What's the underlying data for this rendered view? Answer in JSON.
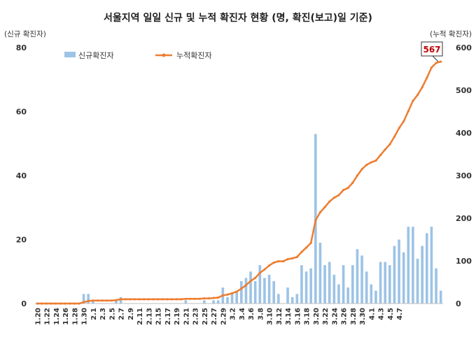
{
  "chart_data": {
    "type": "bar+line",
    "title": "서울지역 일일 신규 및 누적 확진자 현황 (명, 확진(보고)일 기준)",
    "ylabel_left": "(신규 확진자)",
    "ylabel_right": "(누적 확진자)",
    "ylim_left": [
      0,
      80
    ],
    "ylim_right": [
      0,
      600
    ],
    "yticks_left": [
      0,
      20,
      40,
      60,
      80
    ],
    "yticks_right": [
      0,
      100,
      200,
      300,
      400,
      500,
      600
    ],
    "legend_position": "top-left",
    "grid": false,
    "start_date": "2020-01-20",
    "x_tick_labels": [
      "1.20",
      "1.22",
      "1.24",
      "1.26",
      "1.28",
      "1.30",
      "2.1",
      "2.3",
      "2.5",
      "2.7",
      "2.9",
      "2.11",
      "2.13",
      "2.15",
      "2.17",
      "2.19",
      "2.21",
      "2.23",
      "2.25",
      "2.27",
      "2.29",
      "3.2",
      "3.4",
      "3.6",
      "3.8",
      "3.10",
      "3.12",
      "3.14",
      "3.16",
      "3.18",
      "3.20",
      "3.22",
      "3.24",
      "3.26",
      "3.28",
      "3.30",
      "4.1",
      "4.3",
      "4.5",
      "4.7"
    ],
    "series": [
      {
        "name": "신규확진자",
        "kind": "bar",
        "axis": "left",
        "color": "#9dc3e6",
        "values": [
          0,
          0,
          0,
          0,
          0,
          0,
          0,
          0,
          0,
          0,
          3,
          3,
          1,
          0,
          0,
          0,
          0,
          1,
          2,
          0,
          0,
          0,
          0,
          0,
          0,
          0,
          0,
          0,
          0,
          0,
          0,
          0,
          1,
          0,
          0,
          0,
          1,
          0,
          1,
          1,
          5,
          2,
          3,
          4,
          7,
          8,
          10,
          7,
          12,
          8,
          9,
          7,
          3,
          0,
          5,
          2,
          3,
          12,
          10,
          11,
          53,
          19,
          12,
          13,
          9,
          6,
          12,
          5,
          12,
          17,
          15,
          10,
          6,
          4,
          13,
          13,
          12,
          18,
          20,
          16,
          24,
          24,
          14,
          18,
          22,
          24,
          11,
          4
        ]
      },
      {
        "name": "누적확진자",
        "kind": "line",
        "axis": "right",
        "color": "#ed7d31",
        "values": [
          0,
          0,
          0,
          0,
          0,
          0,
          0,
          0,
          0,
          0,
          3,
          6,
          7,
          7,
          7,
          7,
          7,
          8,
          10,
          10,
          10,
          10,
          10,
          10,
          10,
          10,
          10,
          10,
          10,
          10,
          10,
          10,
          11,
          11,
          11,
          11,
          12,
          12,
          13,
          14,
          19,
          21,
          24,
          28,
          35,
          43,
          53,
          60,
          72,
          80,
          89,
          96,
          99,
          99,
          104,
          106,
          109,
          121,
          131,
          142,
          195,
          214,
          226,
          239,
          248,
          254,
          266,
          271,
          283,
          300,
          315,
          325,
          331,
          335,
          348,
          361,
          373,
          391,
          411,
          427,
          451,
          475,
          489,
          507,
          529,
          553,
          564,
          567
        ]
      }
    ],
    "annotation": "567"
  }
}
